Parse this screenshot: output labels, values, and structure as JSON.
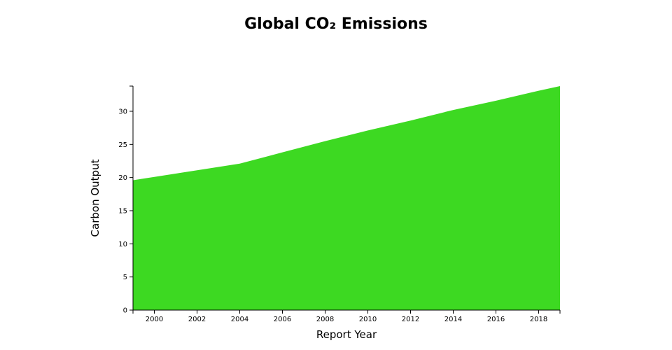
{
  "chart_data": {
    "type": "area",
    "title": "Global CO₂ Emissions",
    "xlabel": "Report Year",
    "ylabel": "Carbon Output",
    "x": [
      1999,
      2000,
      2002,
      2004,
      2006,
      2008,
      2010,
      2012,
      2014,
      2016,
      2018,
      2019
    ],
    "values": [
      19.6,
      20.1,
      21.1,
      22.1,
      23.8,
      25.5,
      27.1,
      28.6,
      30.2,
      31.6,
      33.1,
      33.8
    ],
    "xlim": [
      1999,
      2019
    ],
    "ylim": [
      0,
      33.8
    ],
    "x_ticks": [
      2000,
      2002,
      2004,
      2006,
      2008,
      2010,
      2012,
      2014,
      2016,
      2018
    ],
    "y_ticks": [
      0,
      5,
      10,
      15,
      20,
      25,
      30
    ],
    "grid": false,
    "legend": "none",
    "fill_color": "#3dd922"
  }
}
